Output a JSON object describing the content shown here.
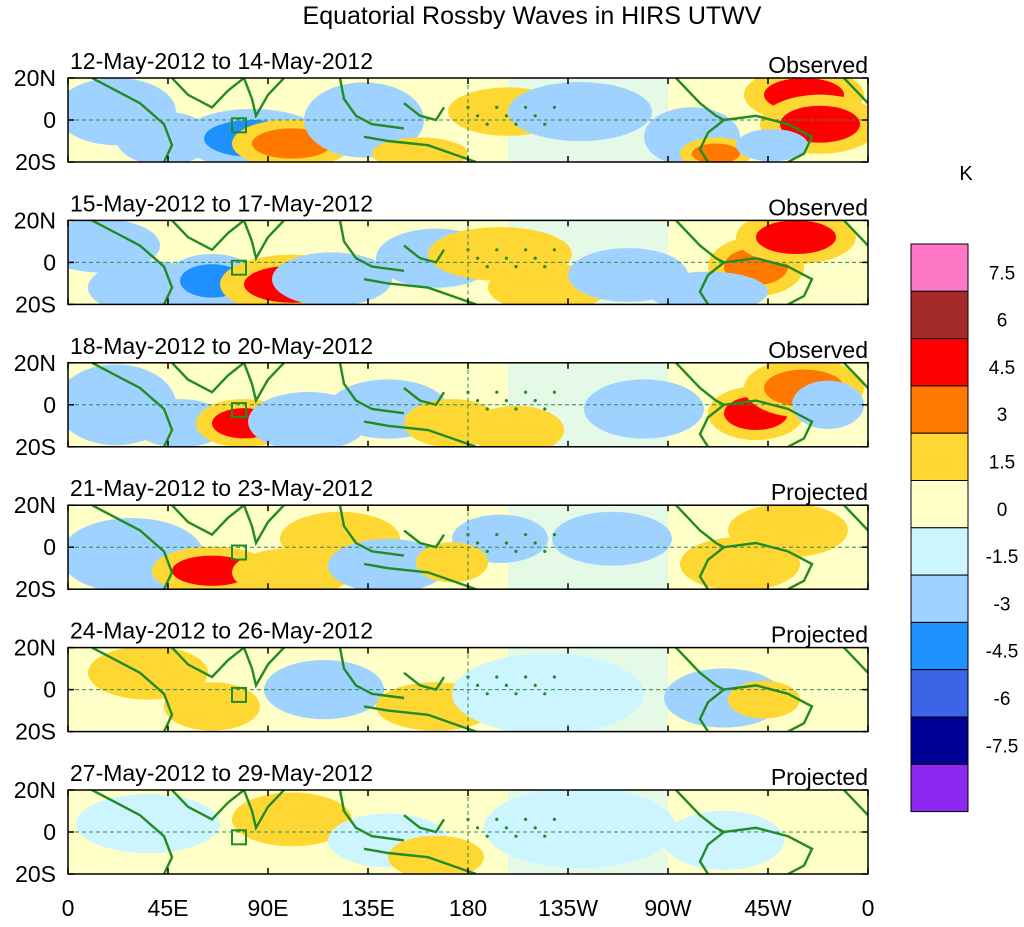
{
  "chart_data": {
    "type": "heatmap",
    "title": "Equatorial Rossby Waves in HIRS UTWV",
    "unit": "K",
    "x_ticks": [
      "0",
      "45E",
      "90E",
      "135E",
      "180",
      "135W",
      "90W",
      "45W",
      "0"
    ],
    "y_ticks": [
      "20N",
      "0",
      "20S"
    ],
    "colorbar": {
      "levels": [
        "7.5",
        "6",
        "4.5",
        "3",
        "1.5",
        "0",
        "-1.5",
        "-3",
        "-4.5",
        "-6",
        "-7.5"
      ],
      "colors": [
        "#ff78c8",
        "#a52a2a",
        "#ff0000",
        "#ff7800",
        "#ffd732",
        "#ffffc8",
        "#cdf5ff",
        "#a0d2ff",
        "#1e91ff",
        "#3c64e6",
        "#000096",
        "#8c28f0"
      ]
    },
    "panels": [
      {
        "date": "12-May-2012 to 14-May-2012",
        "status": "Observed",
        "blobs": [
          [
            0.06,
            0.4,
            0.05,
            0.25,
            -2.2
          ],
          [
            0.12,
            0.72,
            0.04,
            0.2,
            -1.8
          ],
          [
            0.23,
            0.72,
            0.06,
            0.22,
            -3.6
          ],
          [
            0.28,
            0.78,
            0.05,
            0.18,
            4.1
          ],
          [
            0.37,
            0.5,
            0.05,
            0.28,
            -2.2
          ],
          [
            0.44,
            0.9,
            0.04,
            0.12,
            1.8
          ],
          [
            0.55,
            0.4,
            0.05,
            0.18,
            2.4
          ],
          [
            0.64,
            0.4,
            0.06,
            0.22,
            -2
          ],
          [
            0.78,
            0.7,
            0.04,
            0.22,
            -2.4
          ],
          [
            0.81,
            0.9,
            0.03,
            0.12,
            4
          ],
          [
            0.92,
            0.2,
            0.05,
            0.2,
            5.6
          ],
          [
            0.94,
            0.55,
            0.05,
            0.22,
            4.6
          ],
          [
            0.88,
            0.8,
            0.03,
            0.12,
            -2.4
          ]
        ]
      },
      {
        "date": "15-May-2012 to 17-May-2012",
        "status": "Observed",
        "blobs": [
          [
            0.04,
            0.3,
            0.05,
            0.2,
            -2.2
          ],
          [
            0.1,
            0.8,
            0.05,
            0.2,
            -2
          ],
          [
            0.18,
            0.72,
            0.04,
            0.2,
            -3.6
          ],
          [
            0.28,
            0.76,
            0.06,
            0.22,
            4.8
          ],
          [
            0.33,
            0.7,
            0.05,
            0.2,
            -2.8
          ],
          [
            0.46,
            0.45,
            0.05,
            0.22,
            -2
          ],
          [
            0.54,
            0.4,
            0.06,
            0.2,
            2.2
          ],
          [
            0.6,
            0.8,
            0.05,
            0.18,
            2
          ],
          [
            0.7,
            0.65,
            0.05,
            0.2,
            -2
          ],
          [
            0.86,
            0.55,
            0.04,
            0.22,
            3.6
          ],
          [
            0.91,
            0.2,
            0.05,
            0.2,
            5.2
          ],
          [
            0.8,
            0.85,
            0.05,
            0.15,
            -2.4
          ]
        ]
      },
      {
        "date": "18-May-2012 to 20-May-2012",
        "status": "Observed",
        "blobs": [
          [
            0.06,
            0.5,
            0.05,
            0.3,
            -2
          ],
          [
            0.14,
            0.72,
            0.04,
            0.18,
            -3
          ],
          [
            0.22,
            0.72,
            0.04,
            0.18,
            4.6
          ],
          [
            0.3,
            0.7,
            0.05,
            0.22,
            -2.4
          ],
          [
            0.4,
            0.55,
            0.05,
            0.22,
            -1.8
          ],
          [
            0.48,
            0.72,
            0.04,
            0.18,
            2.2
          ],
          [
            0.56,
            0.8,
            0.04,
            0.18,
            2
          ],
          [
            0.72,
            0.55,
            0.05,
            0.22,
            -2
          ],
          [
            0.86,
            0.6,
            0.04,
            0.2,
            4.8
          ],
          [
            0.92,
            0.3,
            0.05,
            0.22,
            3
          ],
          [
            0.95,
            0.5,
            0.03,
            0.18,
            -2.4
          ]
        ]
      },
      {
        "date": "21-May-2012 to 23-May-2012",
        "status": "Projected",
        "blobs": [
          [
            0.08,
            0.6,
            0.06,
            0.28,
            -1.8
          ],
          [
            0.18,
            0.78,
            0.05,
            0.18,
            5
          ],
          [
            0.28,
            0.8,
            0.05,
            0.18,
            2.2
          ],
          [
            0.34,
            0.4,
            0.05,
            0.2,
            2
          ],
          [
            0.4,
            0.72,
            0.05,
            0.2,
            -1.8
          ],
          [
            0.54,
            0.4,
            0.04,
            0.18,
            -1.6
          ],
          [
            0.68,
            0.4,
            0.05,
            0.2,
            -1.6
          ],
          [
            0.84,
            0.7,
            0.05,
            0.2,
            2.2
          ],
          [
            0.9,
            0.3,
            0.05,
            0.2,
            2
          ],
          [
            0.48,
            0.68,
            0.03,
            0.15,
            2.2
          ]
        ]
      },
      {
        "date": "24-May-2012 to 26-May-2012",
        "status": "Projected",
        "blobs": [
          [
            0.1,
            0.3,
            0.05,
            0.2,
            1.8
          ],
          [
            0.18,
            0.7,
            0.04,
            0.18,
            2.2
          ],
          [
            0.32,
            0.5,
            0.05,
            0.22,
            -1.6
          ],
          [
            0.46,
            0.7,
            0.05,
            0.18,
            2
          ],
          [
            0.6,
            0.55,
            0.08,
            0.3,
            -1.2
          ],
          [
            0.82,
            0.6,
            0.05,
            0.22,
            -1.6
          ],
          [
            0.87,
            0.62,
            0.03,
            0.14,
            2
          ]
        ]
      },
      {
        "date": "27-May-2012 to 29-May-2012",
        "status": "Projected",
        "blobs": [
          [
            0.1,
            0.4,
            0.06,
            0.22,
            -1.4
          ],
          [
            0.28,
            0.35,
            0.05,
            0.2,
            1.6
          ],
          [
            0.4,
            0.6,
            0.05,
            0.2,
            -1.2
          ],
          [
            0.46,
            0.8,
            0.04,
            0.16,
            2
          ],
          [
            0.64,
            0.45,
            0.08,
            0.3,
            -1.2
          ],
          [
            0.82,
            0.6,
            0.05,
            0.22,
            -1.2
          ]
        ]
      }
    ]
  }
}
